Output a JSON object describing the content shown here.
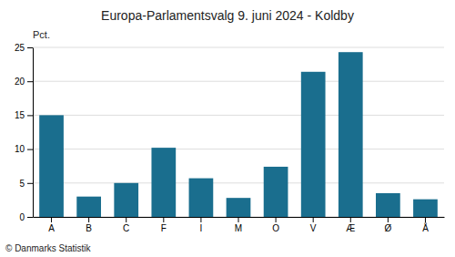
{
  "chart_data": {
    "type": "bar",
    "title": "Europa-Parlamentsvalg 9. juni 2024 - Koldby",
    "ylabel": "Pct.",
    "footer": "© Danmarks Statistik",
    "categories": [
      "A",
      "B",
      "C",
      "F",
      "I",
      "M",
      "O",
      "V",
      "Æ",
      "Ø",
      "Å"
    ],
    "values": [
      15.0,
      3.0,
      5.0,
      10.2,
      5.7,
      2.8,
      7.4,
      21.4,
      24.3,
      3.5,
      2.6
    ],
    "color": "#1a6e8e",
    "ylim": [
      0,
      25
    ],
    "yticks": [
      0,
      5,
      10,
      15,
      20,
      25
    ],
    "grid": true
  }
}
